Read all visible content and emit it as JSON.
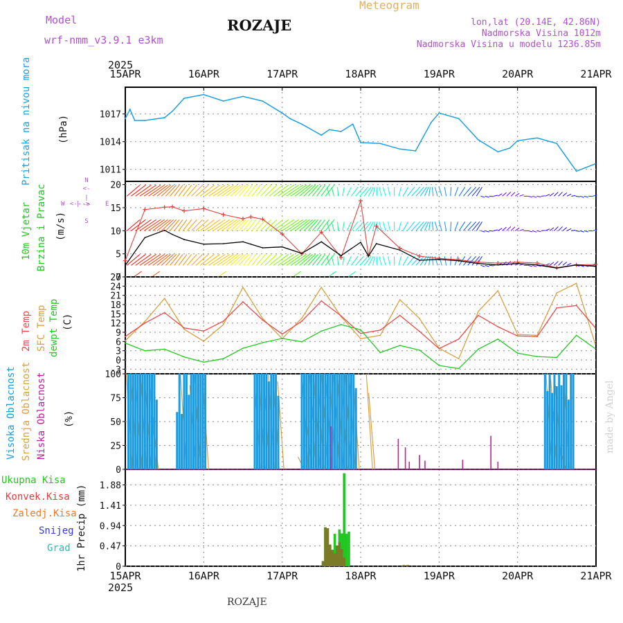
{
  "header": {
    "model_label": "Model",
    "model_name": "wrf-nmm_v3.9.1  e3km",
    "station": "ROZAJE",
    "meteogram": "Meteogram",
    "lonlat": "lon,lat (20.14E, 42.86N)",
    "elevation": "Nadmorska Visina 1012m",
    "model_elevation": "Nadmorska Visina u modelu 1236.85m",
    "watermark": "made by Angel",
    "footer_station": "ROZAJE"
  },
  "colors": {
    "pressure": "#1e9ee0",
    "wind_speed": "#000000",
    "gust": "#e0403c",
    "t2m": "#e84a4a",
    "sfc": "#d8a040",
    "dewpt": "#22c822",
    "high_cloud": "#1a9be0",
    "mid_cloud": "#d8a040",
    "low_cloud": "#c0209a",
    "precip_total": "#22c822",
    "precip_conv": "#e83a3a",
    "precip_frozen": "#f07828",
    "snow": "#3838e0",
    "graupel": "#20c0b0",
    "purple": "#b050d0"
  },
  "chart_data": [
    {
      "type": "line",
      "title": "Pritisak na nivou mora",
      "ylabel": "(hPa)",
      "ylim": [
        1009.7,
        1019.9
      ],
      "yticks": [
        "1011",
        "1014",
        "1017"
      ],
      "ytick_values": [
        1011,
        1014,
        1017
      ],
      "x_days": [
        0,
        0.06,
        0.12,
        0.25,
        0.5,
        0.6,
        0.75,
        1.0,
        1.25,
        1.5,
        1.75,
        2.0,
        2.1,
        2.25,
        2.5,
        2.6,
        2.75,
        2.9,
        3.0,
        3.25,
        3.5,
        3.7,
        3.9,
        4.0,
        4.25,
        4.5,
        4.75,
        4.9,
        5.0,
        5.25,
        5.5,
        5.6,
        5.75,
        5.99
      ],
      "values": [
        1016.5,
        1017.5,
        1016.3,
        1016.3,
        1016.6,
        1017.3,
        1018.7,
        1019.1,
        1018.4,
        1018.9,
        1018.4,
        1017.1,
        1016.5,
        1015.9,
        1014.7,
        1015.3,
        1015.1,
        1015.9,
        1013.9,
        1013.8,
        1013.2,
        1013.0,
        1016.1,
        1017.1,
        1016.5,
        1014.2,
        1012.9,
        1013.3,
        1014.1,
        1014.4,
        1013.8,
        1012.6,
        1010.8,
        1011.6
      ],
      "series_name": "pressure"
    },
    {
      "type": "line",
      "title": "10m Vjetar Brzina i Pravac",
      "ylabel": "(m/s)",
      "ylim": [
        0,
        20.7
      ],
      "yticks": [
        "0",
        "5",
        "10",
        "15",
        "20"
      ],
      "ytick_values": [
        0,
        5,
        10,
        15,
        20
      ],
      "x_days": [
        0,
        0.25,
        0.5,
        0.6,
        0.75,
        1.0,
        1.25,
        1.5,
        1.6,
        1.75,
        2.0,
        2.25,
        2.5,
        2.75,
        3.0,
        3.1,
        3.2,
        3.5,
        3.75,
        4.0,
        4.25,
        4.5,
        4.75,
        5.0,
        5.25,
        5.5,
        5.75,
        5.99
      ],
      "speed": [
        2.5,
        8.5,
        10.1,
        9.2,
        8.1,
        7.1,
        7.2,
        7.6,
        7.1,
        6.3,
        6.5,
        5.1,
        7.6,
        4.6,
        7.5,
        4.5,
        7.2,
        5.8,
        3.6,
        3.8,
        3.5,
        2.9,
        2.6,
        2.9,
        2.6,
        1.9,
        2.6,
        2.3
      ],
      "gust": [
        3.5,
        14.6,
        15.1,
        15.2,
        14.3,
        14.8,
        13.5,
        12.6,
        13.0,
        12.5,
        9.3,
        5.0,
        9.7,
        4.2,
        16.5,
        4.6,
        11.0,
        6.2,
        4.5,
        4.0,
        3.7,
        3.2,
        3.0,
        3.2,
        3.0,
        2.0,
        2.6,
        2.7
      ],
      "side_labels": [
        "W",
        "<--",
        "|",
        "-->",
        "E",
        "N",
        "<-",
        "|",
        "->",
        "S"
      ]
    },
    {
      "type": "line",
      "title": "2m Temp / SFC Temp / dewpt Temp",
      "ylabel": "(C)",
      "ylim": [
        -4.5,
        27
      ],
      "yticks": [
        "-3",
        "0",
        "3",
        "6",
        "9",
        "12",
        "15",
        "18",
        "21",
        "24",
        "27"
      ],
      "ytick_values": [
        -3,
        0,
        3,
        6,
        9,
        12,
        15,
        18,
        21,
        24,
        27
      ],
      "x_days": [
        0,
        0.25,
        0.5,
        0.75,
        1.0,
        1.25,
        1.5,
        1.75,
        2.0,
        2.25,
        2.5,
        2.75,
        3.0,
        3.25,
        3.5,
        3.75,
        4.0,
        4.25,
        4.5,
        4.75,
        5.0,
        5.25,
        5.5,
        5.75,
        5.99
      ],
      "t2m": [
        7.6,
        12.0,
        15.4,
        10.4,
        9.4,
        12.6,
        18.9,
        13.0,
        8.4,
        12.6,
        19.2,
        14.3,
        8.6,
        9.7,
        14.5,
        9.3,
        3.7,
        6.8,
        14.5,
        10.8,
        7.8,
        7.6,
        16.9,
        17.7,
        10.5
      ],
      "sfc": [
        6.3,
        12.5,
        20.0,
        10.0,
        6.1,
        11.5,
        23.6,
        13.5,
        6.9,
        13.6,
        23.6,
        14.1,
        6.9,
        8.0,
        19.6,
        13.5,
        3.8,
        0.4,
        15.8,
        22.5,
        8.3,
        8.0,
        21.8,
        24.9,
        5.2
      ],
      "dewpt": [
        5.5,
        3.0,
        3.5,
        1.0,
        -0.7,
        0.4,
        3.8,
        5.6,
        7.0,
        5.9,
        9.4,
        11.5,
        9.8,
        2.4,
        4.7,
        3.2,
        -1.8,
        -2.8,
        3.5,
        6.8,
        2.2,
        1.1,
        0.8,
        8.0,
        3.7
      ]
    },
    {
      "type": "bar",
      "title": "Visoka / Srednja / Niska Oblacnost",
      "ylabel": "(%)",
      "ylim": [
        0,
        100
      ],
      "yticks": [
        "0",
        "25",
        "50",
        "75",
        "100"
      ],
      "ytick_values": [
        0,
        25,
        50,
        75,
        100
      ],
      "high_cloud": {
        "x_days": [
          0.04,
          0.07,
          0.1,
          0.13,
          0.16,
          0.19,
          0.22,
          0.25,
          0.28,
          0.31,
          0.34,
          0.37,
          0.4,
          0.66,
          0.69,
          0.72,
          0.75,
          0.78,
          0.81,
          0.84,
          0.87,
          0.9,
          0.93,
          0.96,
          0.99,
          1.02,
          1.65,
          1.68,
          1.71,
          1.74,
          1.77,
          1.8,
          1.83,
          1.86,
          1.89,
          1.92,
          1.95,
          2.25,
          2.28,
          2.31,
          2.34,
          2.37,
          2.4,
          2.43,
          2.46,
          2.49,
          2.52,
          2.55,
          2.58,
          2.61,
          2.64,
          2.67,
          2.7,
          2.73,
          2.76,
          2.79,
          2.82,
          2.85,
          2.88,
          2.91,
          2.94,
          5.35,
          5.38,
          5.41,
          5.44,
          5.47,
          5.5,
          5.53,
          5.56,
          5.59,
          5.62,
          5.65,
          5.68,
          5.71
        ],
        "values": [
          100,
          100,
          100,
          100,
          100,
          100,
          100,
          100,
          100,
          100,
          100,
          100,
          73,
          60,
          100,
          58,
          100,
          100,
          78,
          100,
          100,
          100,
          100,
          100,
          100,
          100,
          100,
          100,
          100,
          100,
          100,
          100,
          92,
          100,
          100,
          100,
          77,
          100,
          100,
          100,
          100,
          100,
          100,
          100,
          100,
          100,
          100,
          100,
          100,
          100,
          100,
          100,
          100,
          100,
          100,
          100,
          100,
          100,
          100,
          100,
          85,
          100,
          82,
          100,
          80,
          100,
          87,
          100,
          88,
          100,
          100,
          73,
          100,
          100
        ]
      },
      "mid_cloud": {
        "x_days": [
          0.03,
          0.09,
          0.15,
          0.21,
          0.27,
          0.33,
          0.36,
          0.72,
          0.84,
          0.9,
          1.0,
          1.66,
          1.72,
          1.78,
          1.84,
          1.9,
          1.96,
          2.22,
          2.27,
          2.32,
          2.37,
          2.42,
          2.47,
          2.52,
          2.57,
          2.62,
          2.67,
          2.72,
          2.77,
          2.82,
          2.87,
          2.92,
          3.09,
          3.12,
          5.38,
          5.44,
          5.5,
          5.55,
          5.6
        ],
        "values": [
          100,
          95,
          90,
          100,
          88,
          92,
          60,
          100,
          88,
          100,
          100,
          100,
          100,
          96,
          100,
          100,
          92,
          13,
          100,
          55,
          100,
          100,
          100,
          100,
          100,
          100,
          100,
          100,
          100,
          100,
          100,
          100,
          100,
          80,
          100,
          95,
          88,
          26,
          100
        ]
      },
      "low_cloud": {
        "x_days": [
          2.62,
          3.48,
          3.57,
          3.62,
          3.75,
          3.82,
          4.3,
          4.66,
          4.75
        ],
        "values": [
          45,
          32,
          23,
          8,
          15,
          9,
          10,
          35,
          8
        ]
      }
    },
    {
      "type": "bar",
      "title": "Ukupna Kisa / Konvek.Kisa / Zaledj.Kisa / Snijeg / Grad",
      "ylabel": "1hr Precip (mm)",
      "ylim": [
        0,
        2.24
      ],
      "yticks": [
        "0",
        "0.47",
        "0.94",
        "1.41",
        "1.88"
      ],
      "ytick_values": [
        0,
        0.47,
        0.94,
        1.41,
        1.88
      ],
      "total": {
        "x_days": [
          2.52,
          2.55,
          2.58,
          2.61,
          2.64,
          2.67,
          2.7,
          2.73,
          2.76,
          2.79,
          2.82,
          2.85
        ],
        "values": [
          0.12,
          0.9,
          0.88,
          0.5,
          0.38,
          0.75,
          0.48,
          0.85,
          0.76,
          2.15,
          0.75,
          0.8
        ]
      },
      "convective": {
        "x_days": [
          2.52,
          2.55,
          2.58,
          2.61,
          2.64,
          2.67,
          2.7,
          2.73,
          2.76,
          2.79,
          3.55,
          3.6
        ],
        "values": [
          0.12,
          0.9,
          0.88,
          0.5,
          0.38,
          0.3,
          0.48,
          0.55,
          0.4,
          0.2,
          0.03,
          0.03
        ]
      },
      "x_tick_labels": [
        "15APR",
        "16APR",
        "17APR",
        "18APR",
        "19APR",
        "20APR",
        "21APR"
      ],
      "year_label": "2025"
    }
  ],
  "labels": {
    "pressure": [
      "Pritisak na nivou mora",
      "(hPa)"
    ],
    "wind": [
      "10m Vjetar",
      "Brzina i Pravac",
      "(m/s)"
    ],
    "temp": [
      "2m Temp",
      "SFC Temp",
      "dewpt Temp",
      "(C)"
    ],
    "cloud": [
      "Visoka Oblacnost",
      "Srednja Oblacnost",
      "Niska Oblacnost",
      "(%)"
    ],
    "precip": [
      "Ukupna Kisa",
      "Konvek.Kisa",
      "Zaledj.Kisa",
      "Snijeg",
      "Grad",
      "1hr Precip (mm)"
    ]
  }
}
